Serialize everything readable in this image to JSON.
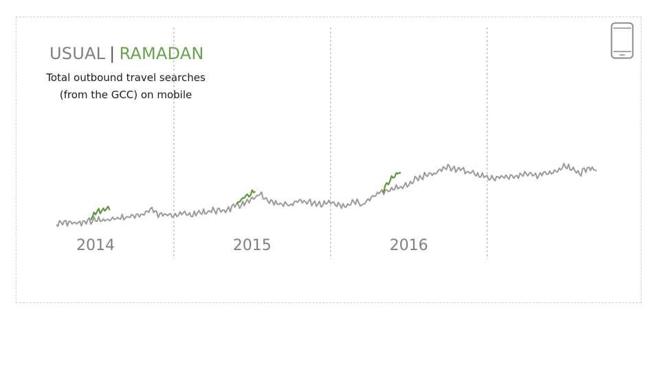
{
  "legend": {
    "usual": "USUAL",
    "separator": "|",
    "ramadan": "RAMADAN"
  },
  "subtitle": {
    "line1": "Total outbound travel searches",
    "line2": "(from the GCC) on mobile"
  },
  "icons": {
    "device": "mobile-phone-icon"
  },
  "colors": {
    "usual": "#9a9a9a",
    "ramadan": "#5f9440",
    "divider": "#b5b5b5"
  },
  "chart_data": {
    "type": "line",
    "title": "",
    "xlabel": "",
    "ylabel": "",
    "x_range": [
      2013.75,
      2017.2
    ],
    "ylim": [
      0,
      100
    ],
    "year_dividers": [
      2014.5,
      2015.5,
      2016.5
    ],
    "tick_labels": [
      {
        "label": "2014",
        "x": 2014.0
      },
      {
        "label": "2015",
        "x": 2015.0
      },
      {
        "label": "2016",
        "x": 2016.0
      }
    ],
    "series": [
      {
        "name": "USUAL",
        "x": [
          2013.75,
          2013.8,
          2013.85,
          2013.9,
          2013.95,
          2014.0,
          2014.05,
          2014.1,
          2014.15,
          2014.2,
          2014.25,
          2014.3,
          2014.35,
          2014.4,
          2014.45,
          2014.5,
          2014.55,
          2014.6,
          2014.65,
          2014.7,
          2014.75,
          2014.8,
          2014.85,
          2014.9,
          2014.95,
          2015.0,
          2015.05,
          2015.1,
          2015.15,
          2015.2,
          2015.25,
          2015.3,
          2015.35,
          2015.4,
          2015.45,
          2015.5,
          2015.55,
          2015.6,
          2015.65,
          2015.7,
          2015.75,
          2015.8,
          2015.85,
          2015.9,
          2015.95,
          2016.0,
          2016.05,
          2016.1,
          2016.15,
          2016.2,
          2016.25,
          2016.3,
          2016.35,
          2016.4,
          2016.45,
          2016.5,
          2016.55,
          2016.6,
          2016.65,
          2016.7,
          2016.75,
          2016.8,
          2016.85,
          2016.9,
          2016.95,
          2017.0,
          2017.05,
          2017.1,
          2017.15,
          2017.2
        ],
        "values": [
          6,
          8,
          8,
          7,
          9,
          11,
          10,
          11,
          12,
          13,
          15,
          14,
          22,
          16,
          15,
          16,
          17,
          15,
          17,
          18,
          20,
          19,
          21,
          24,
          26,
          30,
          35,
          28,
          27,
          26,
          24,
          29,
          28,
          27,
          26,
          29,
          25,
          24,
          29,
          25,
          30,
          36,
          38,
          41,
          42,
          44,
          50,
          53,
          54,
          58,
          62,
          60,
          58,
          56,
          54,
          52,
          50,
          53,
          51,
          54,
          55,
          53,
          55,
          55,
          58,
          62,
          58,
          56,
          62,
          58
        ]
      },
      {
        "name": "RAMADAN",
        "segments": [
          {
            "x": [
              2013.97,
              2014.0,
              2014.03,
              2014.06,
              2014.09
            ],
            "values": [
              12,
              17,
              19,
              22,
              20
            ]
          },
          {
            "x": [
              2014.9,
              2014.93,
              2014.96,
              2014.99,
              2015.02
            ],
            "values": [
              26,
              30,
              34,
              36,
              38
            ]
          },
          {
            "x": [
              2015.83,
              2015.86,
              2015.89,
              2015.92,
              2015.95
            ],
            "values": [
              38,
              45,
              50,
              55,
              56
            ]
          }
        ]
      }
    ]
  }
}
